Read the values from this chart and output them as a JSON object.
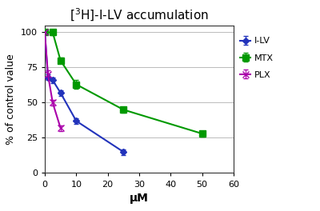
{
  "title": "[$^{3}$H]-I-LV accumulation",
  "xlabel": "μM",
  "ylabel": "% of control value",
  "xlim": [
    0,
    60
  ],
  "ylim": [
    0,
    105
  ],
  "xticks": [
    0,
    10,
    20,
    30,
    40,
    50,
    60
  ],
  "yticks": [
    0,
    25,
    50,
    75,
    100
  ],
  "series": [
    {
      "label": "I-LV",
      "x": [
        0,
        1,
        2.5,
        5,
        10,
        25
      ],
      "y": [
        100,
        68,
        66,
        57,
        37,
        15
      ],
      "yerr": [
        0,
        2,
        2,
        2,
        2,
        2
      ],
      "color": "#2233bb",
      "marker": "D",
      "markersize": 4.5,
      "linewidth": 1.5
    },
    {
      "label": "MTX",
      "x": [
        0,
        2.5,
        5,
        10,
        25,
        50
      ],
      "y": [
        100,
        100,
        80,
        63,
        45,
        28
      ],
      "yerr": [
        0,
        2,
        2,
        3,
        2,
        2
      ],
      "color": "#009900",
      "marker": "s",
      "markersize": 5.5,
      "linewidth": 1.5
    },
    {
      "label": "PLX",
      "x": [
        0,
        1,
        2.5,
        5
      ],
      "y": [
        100,
        70,
        50,
        32
      ],
      "yerr": [
        0,
        3,
        2,
        2
      ],
      "color": "#aa00aa",
      "marker": "x",
      "markersize": 6,
      "linewidth": 1.5
    }
  ],
  "grid_color": "#bbbbbb",
  "background_color": "#ffffff",
  "title_fontsize": 11,
  "axis_fontsize": 9,
  "tick_fontsize": 8,
  "legend_fontsize": 8
}
